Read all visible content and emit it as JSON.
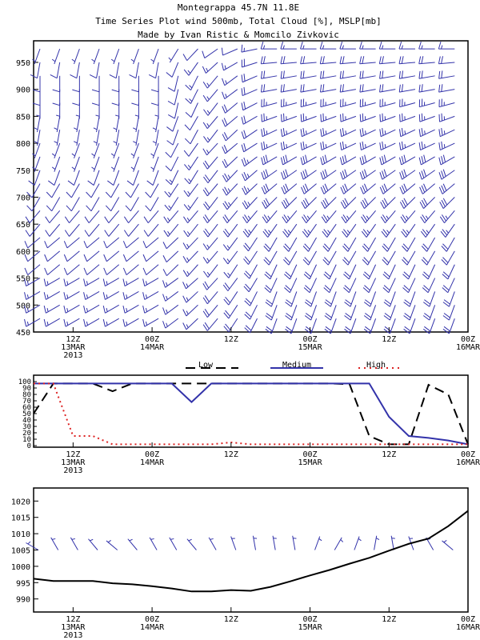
{
  "header": {
    "line1": "Montegrappa  45.7N 11.8E",
    "line2": "Time Series Plot wind 500mb, Total Cloud [%], MSLP[mb]",
    "line3": "Made by Ivan Ristic & Momcilo Zivkovic"
  },
  "colors": {
    "wind": "#3333aa",
    "medium": "#3333aa",
    "low": "#000000",
    "high": "#dd2222"
  },
  "time_axis": {
    "t_range": [
      0,
      66
    ],
    "ticks": [
      {
        "t": 6,
        "l1": "12Z",
        "l2": "13MAR",
        "l3": "2013"
      },
      {
        "t": 18,
        "l1": "00Z",
        "l2": "14MAR",
        "l3": ""
      },
      {
        "t": 30,
        "l1": "12Z",
        "l2": "",
        "l3": ""
      },
      {
        "t": 42,
        "l1": "00Z",
        "l2": "15MAR",
        "l3": ""
      },
      {
        "t": 54,
        "l1": "12Z",
        "l2": "",
        "l3": ""
      },
      {
        "t": 66,
        "l1": "00Z",
        "l2": "16MAR",
        "l3": ""
      }
    ]
  },
  "chart_data": [
    {
      "type": "scatter",
      "subtype": "wind-barbs",
      "title": "wind 500mb",
      "ylim": [
        990,
        450
      ],
      "y_ticks": [
        450,
        500,
        550,
        600,
        650,
        700,
        750,
        800,
        850,
        900,
        950
      ],
      "x_step": 3,
      "levels": [
        475,
        500,
        525,
        550,
        575,
        600,
        625,
        650,
        675,
        700,
        725,
        750,
        775,
        800,
        825,
        850,
        875,
        900,
        925,
        950,
        975
      ],
      "early_dir": [
        240,
        240,
        240,
        240,
        230,
        230,
        230,
        220,
        220,
        210,
        210,
        200,
        200,
        200,
        190,
        190,
        180,
        180,
        180,
        190,
        200
      ],
      "late_dir": [
        200,
        200,
        200,
        205,
        205,
        210,
        210,
        215,
        220,
        225,
        230,
        235,
        240,
        245,
        245,
        250,
        255,
        260,
        260,
        265,
        270
      ],
      "early_speed": [
        15,
        15,
        15,
        15,
        10,
        10,
        10,
        10,
        10,
        10,
        10,
        10,
        5,
        5,
        5,
        5,
        5,
        10,
        10,
        10,
        5
      ],
      "late_speed": [
        20,
        20,
        20,
        20,
        20,
        20,
        20,
        25,
        25,
        30,
        30,
        30,
        30,
        25,
        25,
        25,
        25,
        20,
        20,
        20,
        15
      ]
    },
    {
      "type": "line",
      "title": "Total Cloud [%]",
      "ylim": [
        0,
        100
      ],
      "y_ticks": [
        0,
        10,
        20,
        30,
        40,
        50,
        60,
        70,
        80,
        90,
        100
      ],
      "legend_placement": "top",
      "x": [
        0,
        3,
        6,
        9,
        12,
        15,
        18,
        21,
        24,
        27,
        30,
        33,
        36,
        39,
        42,
        45,
        48,
        51,
        54,
        57,
        60,
        63,
        66
      ],
      "series": [
        {
          "name": "Low",
          "style": "dashed",
          "values": [
            50,
            97,
            97,
            97,
            85,
            97,
            97,
            97,
            97,
            97,
            97,
            97,
            97,
            97,
            97,
            97,
            96,
            15,
            2,
            2,
            95,
            80,
            2
          ]
        },
        {
          "name": "Medium",
          "style": "solid",
          "values": [
            97,
            97,
            97,
            97,
            97,
            97,
            97,
            97,
            68,
            97,
            97,
            97,
            97,
            97,
            97,
            97,
            97,
            97,
            45,
            15,
            12,
            8,
            2
          ]
        },
        {
          "name": "High",
          "style": "dotted",
          "values": [
            97,
            97,
            15,
            15,
            2,
            2,
            2,
            2,
            2,
            2,
            5,
            2,
            2,
            2,
            2,
            2,
            2,
            2,
            2,
            2,
            2,
            2,
            2
          ]
        }
      ]
    },
    {
      "type": "line",
      "title": "MSLP[mb]",
      "ylim": [
        986,
        1024
      ],
      "y_ticks": [
        990,
        995,
        1000,
        1005,
        1010,
        1015,
        1020
      ],
      "x": [
        0,
        3,
        6,
        9,
        12,
        15,
        18,
        21,
        24,
        27,
        30,
        33,
        36,
        39,
        42,
        45,
        48,
        51,
        54,
        57,
        60,
        63,
        66
      ],
      "series": [
        {
          "values": [
            996.2,
            995.5,
            995.5,
            995.5,
            994.8,
            994.5,
            993.9,
            993.2,
            992.3,
            992.3,
            992.7,
            992.5,
            993.7,
            995.4,
            997.2,
            998.9,
            1000.8,
            1002.6,
            1004.8,
            1006.9,
            1008.5,
            1012.3,
            1017.0
          ]
        }
      ],
      "surface_wind": {
        "y_ref": 1005,
        "x_step": 3,
        "dir": [
          300,
          330,
          330,
          320,
          310,
          320,
          330,
          330,
          320,
          330,
          340,
          350,
          350,
          350,
          20,
          30,
          20,
          10,
          350,
          340,
          330,
          310,
          300
        ],
        "speed": [
          5,
          5,
          5,
          5,
          5,
          5,
          5,
          5,
          5,
          5,
          5,
          5,
          5,
          5,
          5,
          5,
          5,
          5,
          5,
          5,
          5,
          5,
          5
        ]
      }
    }
  ]
}
